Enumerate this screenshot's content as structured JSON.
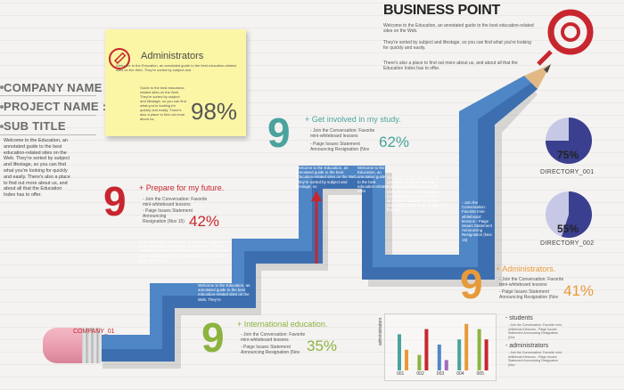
{
  "left": {
    "company_name": "COMPANY NAME :",
    "project_name": "PROJECT NAME :",
    "sub_title": "SUB TITLE",
    "paragraph": "Welcome to the Education, an annotated guide to the best education-related sites on the Web. They're sorted by subject and lifestage, so you can find what you're looking for quickly and easily. There's also a place to find out more about us, and about all that the Education Index has to offer."
  },
  "note": {
    "title": "Administrators",
    "body": "Welcome to the Education, an annotated guide to the best education-related sites on the Web. They're sorted by subject and",
    "body2": "Guide to the best education-related sites on the Web. They're sorted by subject and lifestage, so you can find what you're looking for quickly and easily. There's also a place to find out more about us,",
    "percent": "98%",
    "accent": "#c8262e"
  },
  "business": {
    "title": "BUSINESS POINT",
    "p1": "Welcome to the Education, an annotated guide to the best education-related sites on the Web.",
    "p2": "They're sorted by subject and lifestage, so you can find what you're looking for quickly and easily.",
    "p3": "There's also a place to find out more about us, and about all that the Education Index has to offer."
  },
  "sections": {
    "study": {
      "title": "+ Get involved in my study.",
      "line1": "- Join the Conversation: Favorite mini-whiteboard lessons",
      "line2": "- Paige Issues Statement Announcing Resignation (Nov",
      "percent": "62%",
      "color": "#4aa39d"
    },
    "future": {
      "title": "+ Prepare for my future.",
      "line1": "- Join the Conversation: Favorite mini-whiteboard lessons",
      "line2": "- Paige Issues Statement Announcing",
      "line3": "Resignation (Nov 15)",
      "percent": "42%",
      "color": "#c8262e"
    },
    "admin": {
      "title": "+ Administrators.",
      "line1": "- Join the Conversation: Favorite mini-whiteboard lessons",
      "line2": "- Paige Issues Statement Announcing Resignation (Nov",
      "percent": "41%",
      "color": "#e89a3a"
    },
    "intl": {
      "title": "+ International education.",
      "line1": "- Join the Conversation: Favorite mini-whiteboard lessons",
      "line2": "- Paige Issues Statement Announcing Resignation (Nov",
      "percent": "35%",
      "color": "#8db33f"
    }
  },
  "pencil": {
    "eraser_label": "COMPANY_01",
    "text_a": "Welcome to the Education, an annotated guide to the best education-related sites on the Web. They're sorted by subject and lifestage, so you can find what you're looking for quickly and easily. There's also a place to find out",
    "text_b": "Welcome to the Education, an annotated guide to the best education-related sites on the Web. They're",
    "text_c": "Welcome to the Education, an annotated guide to the best education-related sites on the Web. They're sorted by subject and lifestage, so",
    "text_d": "Welcome to the Education, an annotated guide to the best education-related sites",
    "text_e": "Welcome to the Education, an annotated guide to the best education-related sites on the Web. They're sorted by subject and lifestage, so you can find what you're looking for quickly and easily. There's also a place to find out",
    "text_f": "- Join the Conversation: Favorite mini-whiteboard lessons - Paige Issues Statement Announcing Resignation (Nov 15)",
    "pencil_color": "#4f86c6"
  },
  "pies": [
    {
      "label": "DIRECTORY_001",
      "percent": "75%",
      "value": 0.75
    },
    {
      "label": "DIRECTORY_002",
      "percent": "55%",
      "value": 0.55
    }
  ],
  "chart_data": {
    "type": "bar",
    "ylabel": "administrators",
    "categories": [
      "001",
      "002",
      "003",
      "004",
      "005"
    ],
    "series": [
      {
        "name": "students",
        "values": [
          7,
          3,
          5,
          6,
          8
        ]
      },
      {
        "name": "administrators",
        "values": [
          4,
          8,
          2,
          9,
          6
        ]
      }
    ],
    "legend": [
      {
        "name": "- students",
        "sub": "- Join the Conversation: Favorite mini-whiteboard lessons - Paige Issues Statement Announcing Resignation (Nov"
      },
      {
        "name": "- administrators",
        "sub": "- Join the Conversation: Favorite mini-whiteboard lessons - Paige Issues Statement Announcing Resignation (Nov"
      }
    ]
  }
}
